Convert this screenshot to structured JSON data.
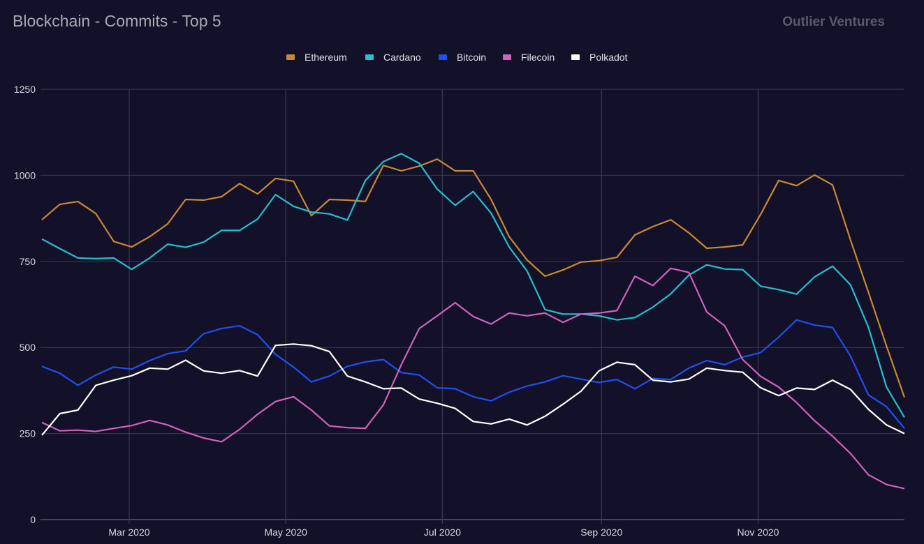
{
  "chart_data": {
    "type": "line",
    "title": "Blockchain - Commits - Top 5",
    "brand": "Outlier Ventures",
    "xlabel": "",
    "ylabel": "",
    "ylim": [
      0,
      1250
    ],
    "yticks": [
      0,
      250,
      500,
      750,
      1000,
      1250
    ],
    "xlim": [
      "2020-01-27",
      "2020-12-28"
    ],
    "xticks": [
      {
        "date": "2020-03-01",
        "label": "Mar 2020"
      },
      {
        "date": "2020-05-01",
        "label": "May 2020"
      },
      {
        "date": "2020-07-01",
        "label": "Jul 2020"
      },
      {
        "date": "2020-09-01",
        "label": "Sep 2020"
      },
      {
        "date": "2020-11-01",
        "label": "Nov 2020"
      }
    ],
    "grid": true,
    "legend_position": "top-center",
    "x": [
      "2020-01-27",
      "2020-02-03",
      "2020-02-10",
      "2020-02-17",
      "2020-02-24",
      "2020-03-02",
      "2020-03-09",
      "2020-03-16",
      "2020-03-23",
      "2020-03-30",
      "2020-04-06",
      "2020-04-13",
      "2020-04-20",
      "2020-04-27",
      "2020-05-04",
      "2020-05-11",
      "2020-05-18",
      "2020-05-25",
      "2020-06-01",
      "2020-06-08",
      "2020-06-15",
      "2020-06-22",
      "2020-06-29",
      "2020-07-06",
      "2020-07-13",
      "2020-07-20",
      "2020-07-27",
      "2020-08-03",
      "2020-08-10",
      "2020-08-17",
      "2020-08-24",
      "2020-08-31",
      "2020-09-07",
      "2020-09-14",
      "2020-09-21",
      "2020-09-28",
      "2020-10-05",
      "2020-10-12",
      "2020-10-19",
      "2020-10-26",
      "2020-11-02",
      "2020-11-09",
      "2020-11-16",
      "2020-11-23",
      "2020-11-30",
      "2020-12-07",
      "2020-12-14",
      "2020-12-21",
      "2020-12-28"
    ],
    "series": [
      {
        "name": "Ethereum",
        "color": "#c98a2e",
        "values": [
          871,
          916,
          924,
          889,
          808,
          792,
          822,
          859,
          930,
          928,
          938,
          976,
          946,
          991,
          983,
          883,
          930,
          928,
          924,
          1029,
          1013,
          1027,
          1047,
          1013,
          1013,
          930,
          822,
          754,
          707,
          725,
          748,
          752,
          762,
          827,
          851,
          871,
          833,
          788,
          792,
          798,
          887,
          985,
          970,
          1001,
          972,
          812,
          660,
          504,
          355
        ]
      },
      {
        "name": "Cardano",
        "color": "#22c1cc",
        "values": [
          815,
          787,
          760,
          758,
          760,
          727,
          760,
          800,
          791,
          806,
          840,
          840,
          873,
          944,
          910,
          893,
          888,
          870,
          985,
          1040,
          1063,
          1035,
          960,
          913,
          953,
          890,
          792,
          722,
          610,
          597,
          597,
          592,
          580,
          587,
          617,
          656,
          710,
          740,
          728,
          726,
          678,
          668,
          655,
          705,
          736,
          682,
          558,
          385,
          297
        ]
      },
      {
        "name": "Bitcoin",
        "color": "#1f4ff0",
        "values": [
          445,
          425,
          390,
          420,
          443,
          437,
          462,
          482,
          490,
          540,
          555,
          563,
          537,
          480,
          443,
          400,
          417,
          445,
          458,
          465,
          427,
          420,
          383,
          380,
          357,
          345,
          370,
          388,
          400,
          418,
          408,
          398,
          407,
          380,
          410,
          407,
          440,
          462,
          450,
          472,
          485,
          530,
          580,
          565,
          558,
          475,
          362,
          328,
          265
        ]
      },
      {
        "name": "Filecoin",
        "color": "#d062b8",
        "values": [
          282,
          258,
          260,
          256,
          265,
          273,
          288,
          275,
          254,
          237,
          226,
          262,
          306,
          343,
          357,
          318,
          272,
          267,
          265,
          333,
          450,
          555,
          592,
          630,
          590,
          568,
          600,
          592,
          600,
          573,
          597,
          600,
          607,
          707,
          680,
          730,
          718,
          603,
          563,
          465,
          416,
          385,
          340,
          287,
          242,
          192,
          130,
          102,
          90
        ]
      },
      {
        "name": "Polkadot",
        "color": "#ffffff",
        "values": [
          245,
          308,
          318,
          390,
          405,
          418,
          440,
          437,
          463,
          432,
          425,
          433,
          417,
          506,
          510,
          505,
          488,
          417,
          400,
          380,
          382,
          350,
          338,
          323,
          285,
          278,
          292,
          275,
          300,
          335,
          373,
          432,
          457,
          450,
          405,
          400,
          408,
          440,
          433,
          428,
          383,
          360,
          382,
          378,
          405,
          378,
          320,
          275,
          250
        ]
      }
    ]
  }
}
